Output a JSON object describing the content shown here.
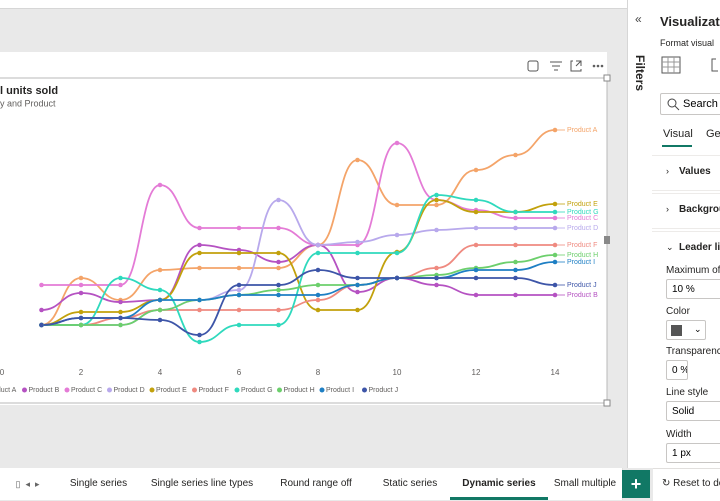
{
  "chart_data": {
    "type": "line",
    "title": "l units sold",
    "subtitle": "y and Product",
    "x": [
      1,
      2,
      3,
      4,
      5,
      6,
      7,
      8,
      9,
      10,
      11,
      12,
      13,
      14
    ],
    "xlim": [
      0,
      14
    ],
    "xticks": [
      0,
      2,
      4,
      6,
      8,
      10,
      12,
      14
    ],
    "ylim": [
      0,
      250
    ],
    "series": [
      {
        "name": "Product A",
        "color": "#f4a469",
        "values": [
          25,
          72,
          50,
          80,
          82,
          82,
          82,
          105,
          190,
          145,
          145,
          180,
          195,
          220
        ]
      },
      {
        "name": "Product B",
        "color": "#b552c2",
        "values": [
          40,
          57,
          48,
          50,
          105,
          100,
          88,
          105,
          58,
          72,
          65,
          55,
          55,
          55
        ]
      },
      {
        "name": "Product C",
        "color": "#e47bd6",
        "values": [
          65,
          65,
          65,
          165,
          122,
          122,
          122,
          105,
          105,
          207,
          150,
          140,
          132,
          132
        ]
      },
      {
        "name": "Product D",
        "color": "#b8a9ec",
        "values": [
          25,
          25,
          25,
          40,
          50,
          60,
          150,
          105,
          108,
          115,
          120,
          122,
          122,
          122
        ]
      },
      {
        "name": "Product E",
        "color": "#c2a10c",
        "values": [
          25,
          38,
          38,
          50,
          97,
          97,
          97,
          40,
          40,
          98,
          150,
          138,
          138,
          146
        ]
      },
      {
        "name": "Product F",
        "color": "#ef8a80",
        "values": [
          25,
          25,
          32,
          40,
          40,
          40,
          40,
          50,
          65,
          72,
          82,
          105,
          105,
          105
        ]
      },
      {
        "name": "Product G",
        "color": "#2fd9bd",
        "values": [
          25,
          25,
          72,
          60,
          8,
          25,
          25,
          97,
          97,
          97,
          155,
          150,
          138,
          138
        ]
      },
      {
        "name": "Product H",
        "color": "#6ccf6c",
        "values": [
          25,
          25,
          25,
          40,
          50,
          55,
          60,
          65,
          65,
          72,
          75,
          82,
          88,
          95
        ]
      },
      {
        "name": "Product I",
        "color": "#1e7fc4",
        "values": [
          25,
          32,
          32,
          50,
          50,
          55,
          55,
          55,
          65,
          72,
          72,
          80,
          80,
          88
        ]
      },
      {
        "name": "Product J",
        "color": "#3d55a8",
        "values": [
          25,
          32,
          32,
          30,
          15,
          65,
          65,
          80,
          72,
          72,
          72,
          72,
          72,
          65
        ]
      }
    ]
  },
  "ui": {
    "tabs": [
      "Single series",
      "Single series line types",
      "Round range off",
      "Static series",
      "Dynamic series",
      "Small multiple"
    ],
    "active_tab": 4,
    "filters": "Filters",
    "pane": {
      "title": "Visualizati",
      "subtitle": "Format visual",
      "search": "Search",
      "tabs": [
        "Visual",
        "Ge"
      ],
      "sections": [
        "Values",
        "Backgrou",
        "Leader lin"
      ],
      "fields": [
        {
          "label": "Maximum of",
          "value": "10 %"
        },
        {
          "label": "Color"
        },
        {
          "label": "Transparency",
          "value": "0 %"
        },
        {
          "label": "Line style",
          "value": "Solid"
        },
        {
          "label": "Width",
          "value": "1 px"
        }
      ],
      "reset": "Reset to de"
    }
  }
}
